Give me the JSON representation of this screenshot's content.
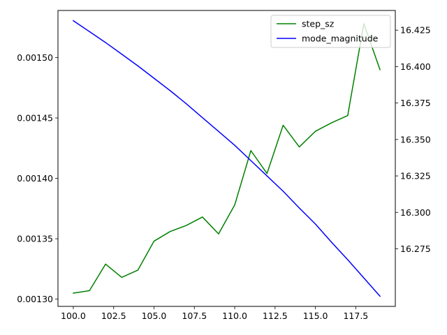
{
  "chart_data": {
    "type": "line",
    "title": "",
    "xlabel": "",
    "ylabel": "",
    "x": [
      100,
      101,
      102,
      103,
      104,
      105,
      106,
      107,
      108,
      109,
      110,
      111,
      112,
      113,
      114,
      115,
      116,
      117,
      118,
      119
    ],
    "xlim": [
      99.05,
      119.95
    ],
    "xticks": [
      "100.0",
      "102.5",
      "105.0",
      "107.5",
      "110.0",
      "112.5",
      "115.0",
      "117.5"
    ],
    "grid": false,
    "legend_position": "top-right",
    "series": [
      {
        "name": "step_sz",
        "axis": "left",
        "color": "#008000",
        "values": [
          0.001305,
          0.001307,
          0.001329,
          0.001318,
          0.001324,
          0.001348,
          0.001356,
          0.001361,
          0.001368,
          0.001354,
          0.001378,
          0.001423,
          0.001404,
          0.001444,
          0.001426,
          0.001439,
          0.001446,
          0.001452,
          0.001528,
          0.00149
        ]
      },
      {
        "name": "mode_magnitude",
        "axis": "right",
        "color": "#0000ff",
        "values": [
          16.4315,
          16.424,
          16.4165,
          16.4085,
          16.4005,
          16.392,
          16.3835,
          16.3745,
          16.365,
          16.3555,
          16.346,
          16.3355,
          16.325,
          16.3145,
          16.303,
          16.292,
          16.2795,
          16.2675,
          16.255,
          16.2425
        ]
      }
    ],
    "y_left": {
      "ylim": [
        0.001294,
        0.001539
      ],
      "ticks": [
        "0.00130",
        "0.00135",
        "0.00140",
        "0.00145",
        "0.00150"
      ]
    },
    "y_right": {
      "ylim": [
        16.2355,
        16.4385
      ],
      "ticks": [
        "16.275",
        "16.300",
        "16.325",
        "16.350",
        "16.375",
        "16.400",
        "16.425"
      ]
    }
  }
}
